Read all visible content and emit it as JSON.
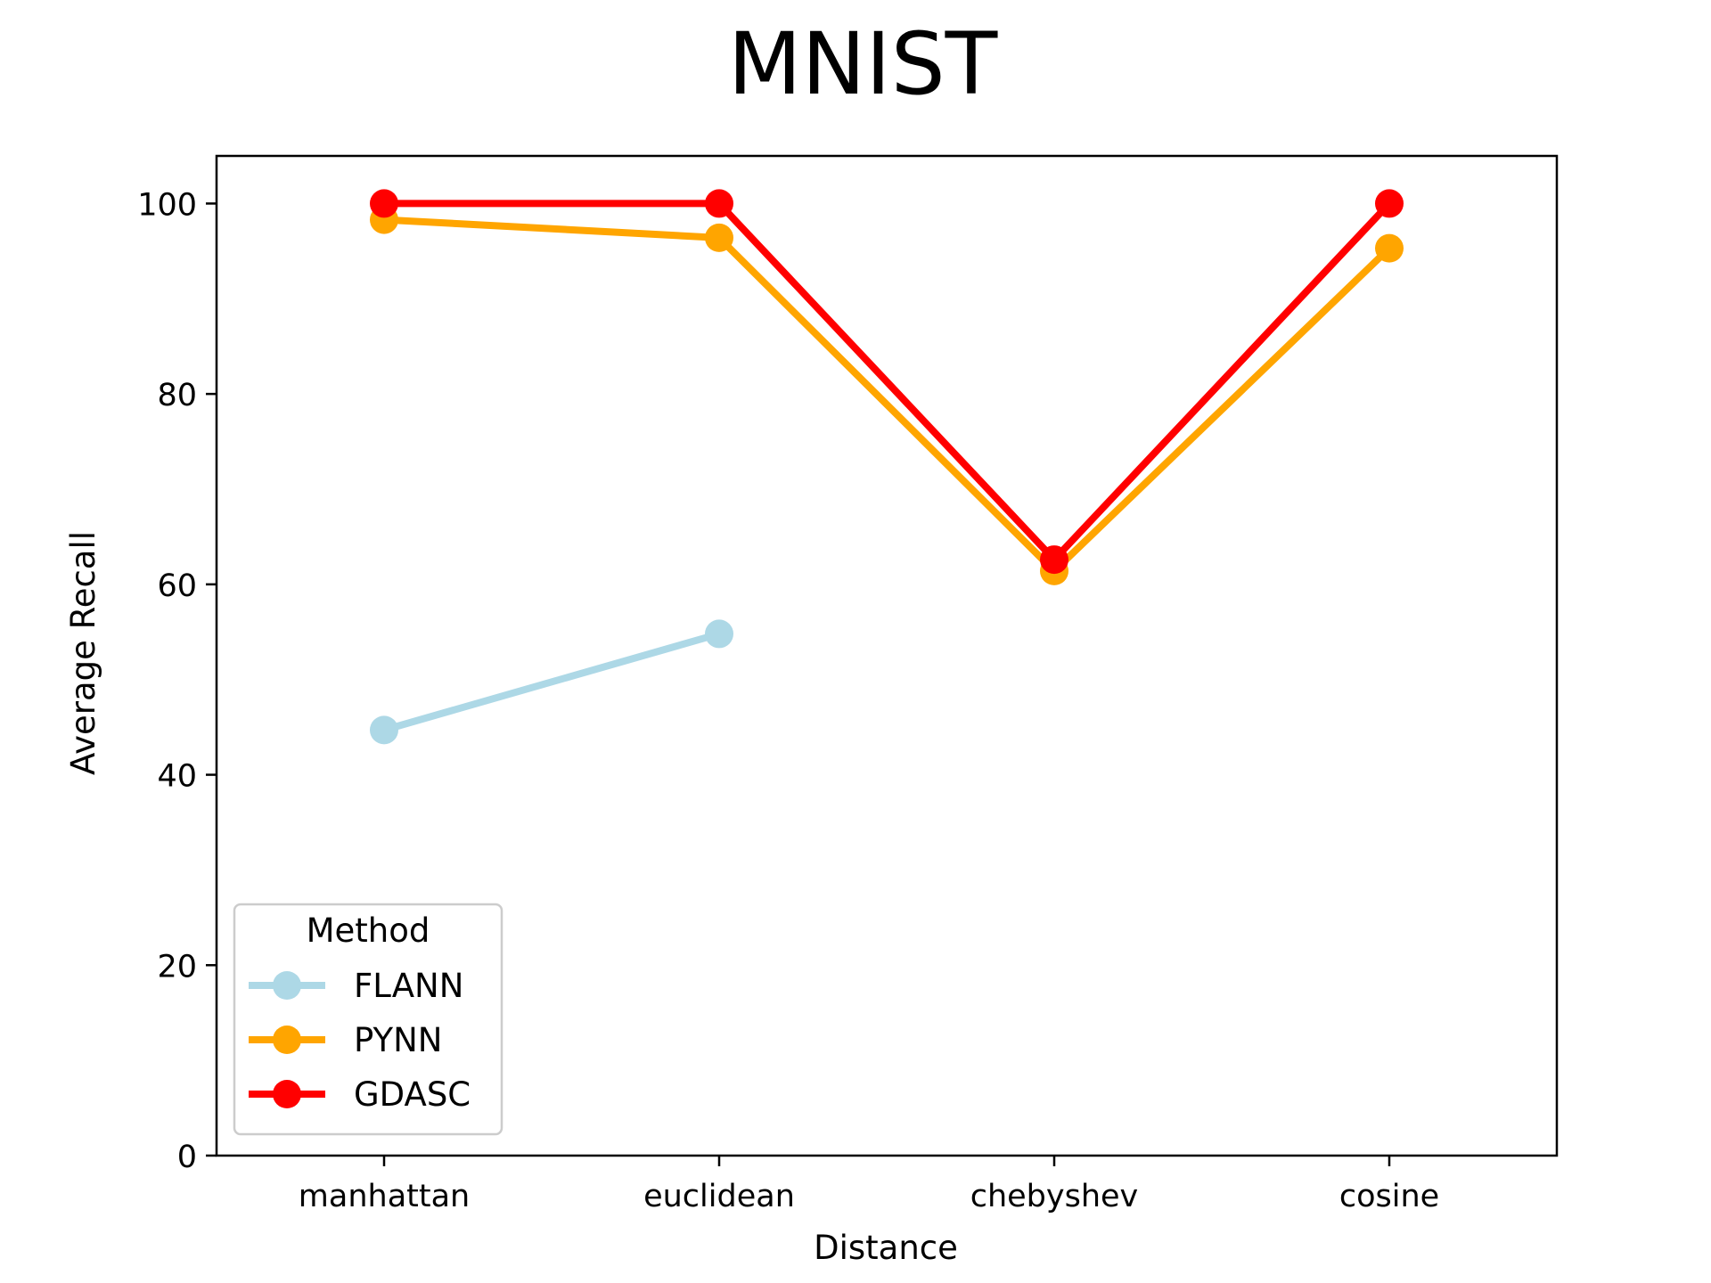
{
  "chart_data": {
    "type": "line",
    "title": "MNIST",
    "xlabel": "Distance",
    "ylabel": "Average Recall",
    "categories": [
      "manhattan",
      "euclidean",
      "chebyshev",
      "cosine"
    ],
    "ylim": [
      0,
      105
    ],
    "yticks": [
      0,
      20,
      40,
      60,
      80,
      100
    ],
    "grid": false,
    "legend": {
      "title": "Method",
      "placement": "lower-left"
    },
    "series": [
      {
        "name": "FLANN",
        "color": "#add8e6",
        "values": [
          44.7,
          54.8,
          null,
          null
        ]
      },
      {
        "name": "PYNN",
        "color": "#ffa500",
        "values": [
          98.3,
          96.4,
          61.4,
          95.3
        ]
      },
      {
        "name": "GDASC",
        "color": "#ff0000",
        "values": [
          100,
          100,
          62.6,
          100
        ]
      }
    ]
  }
}
